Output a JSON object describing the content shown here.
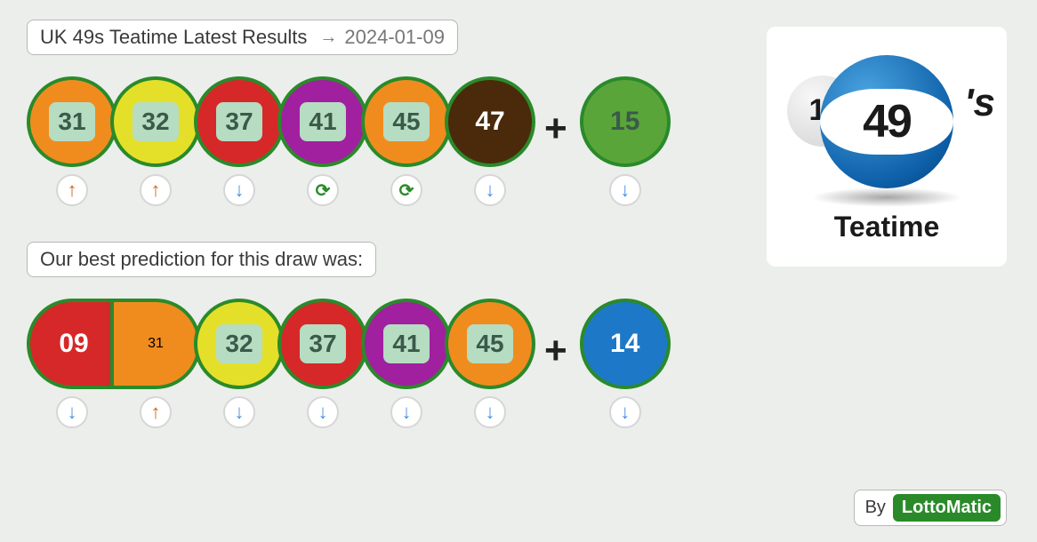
{
  "header": {
    "title": "UK 49s Teatime Latest Results",
    "date": "2024-01-09"
  },
  "prediction_label": "Our best prediction for this draw was:",
  "plus_symbol": "+",
  "byline": {
    "prefix": "By",
    "brand": "LottoMatic"
  },
  "logo": {
    "number": "49",
    "suffix": "'s",
    "bg_num": "1",
    "label": "Teatime"
  },
  "colors": {
    "border": "#2a8a2a",
    "numbox_bg": "#b6dcc2",
    "numbox_text": "#3a5a4a",
    "orange": "#f08c1e",
    "yellow": "#e4e02a",
    "red": "#d62828",
    "purple": "#a020a0",
    "brown": "#4a2a0a",
    "green": "#5aa53a",
    "blue": "#1e78c8",
    "white_text": "#ffffff"
  },
  "results": {
    "main": [
      {
        "num": "31",
        "bg": "#f08c1e",
        "boxed": true,
        "trend": "up"
      },
      {
        "num": "32",
        "bg": "#e4e02a",
        "boxed": true,
        "trend": "up"
      },
      {
        "num": "37",
        "bg": "#d62828",
        "boxed": true,
        "trend": "down"
      },
      {
        "num": "41",
        "bg": "#a020a0",
        "boxed": true,
        "trend": "cycle"
      },
      {
        "num": "45",
        "bg": "#f08c1e",
        "boxed": true,
        "trend": "cycle"
      },
      {
        "num": "47",
        "bg": "#4a2a0a",
        "boxed": false,
        "text_color": "#ffffff",
        "trend": "down"
      }
    ],
    "bonus": {
      "num": "15",
      "bg": "#5aa53a",
      "boxed": false,
      "text_color": "#3a5a4a",
      "trend": "down"
    }
  },
  "prediction": {
    "main": [
      {
        "num": "09",
        "bg": "#d62828",
        "shape": "pill-left",
        "boxed": false,
        "text_color": "#ffffff",
        "trend": "down"
      },
      {
        "num": "31",
        "bg": "#f08c1e",
        "shape": "pill-right",
        "boxed": true,
        "trend": "up"
      },
      {
        "num": "32",
        "bg": "#e4e02a",
        "shape": "ball",
        "boxed": true,
        "trend": "down"
      },
      {
        "num": "37",
        "bg": "#d62828",
        "shape": "ball",
        "boxed": true,
        "trend": "down"
      },
      {
        "num": "41",
        "bg": "#a020a0",
        "shape": "ball",
        "boxed": true,
        "trend": "down"
      },
      {
        "num": "45",
        "bg": "#f08c1e",
        "shape": "ball",
        "boxed": true,
        "trend": "down"
      }
    ],
    "bonus": {
      "num": "14",
      "bg": "#1e78c8",
      "boxed": false,
      "text_color": "#ffffff",
      "trend": "down"
    }
  }
}
